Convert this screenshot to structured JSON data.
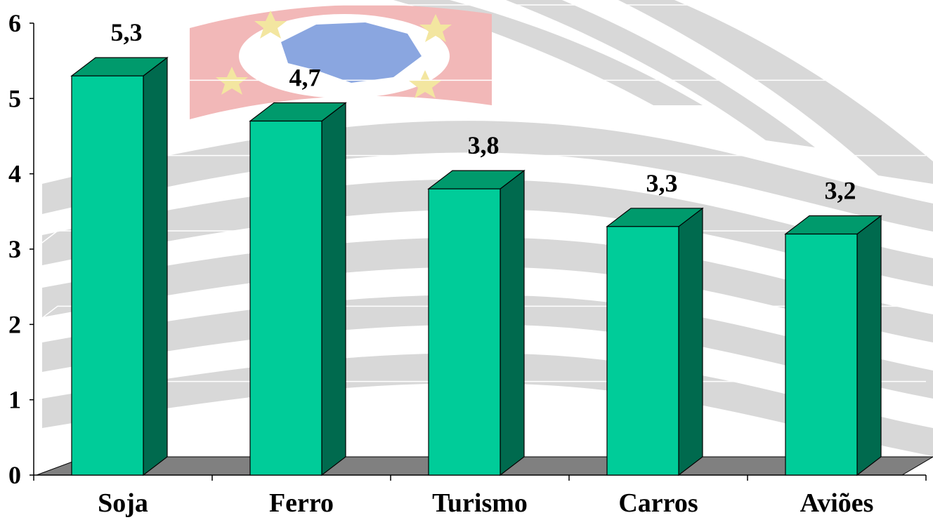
{
  "colors": {
    "bar_front": "#00cc99",
    "bar_side": "#006a4e",
    "bar_top": "#009a6c",
    "floor": "#808080",
    "background_stripe": "#d8d8d8",
    "flag_red": "#f2b8b8",
    "flag_blue": "#8aa6e0",
    "flag_star": "#f3e6a0"
  },
  "chart_data": {
    "type": "bar",
    "categories": [
      "Soja",
      "Ferro",
      "Turismo",
      "Carros",
      "Aviões"
    ],
    "values": [
      5.3,
      4.7,
      3.8,
      3.3,
      3.2
    ],
    "value_labels": [
      "5,3",
      "4,7",
      "3,8",
      "3,3",
      "3,2"
    ],
    "title": "",
    "xlabel": "",
    "ylabel": "",
    "ylim": [
      0,
      6
    ],
    "yticks": [
      0,
      1,
      2,
      3,
      4,
      5,
      6
    ],
    "grid": true,
    "legend": "none",
    "style": "3d-column",
    "background": "São Paulo state flag watermark"
  }
}
